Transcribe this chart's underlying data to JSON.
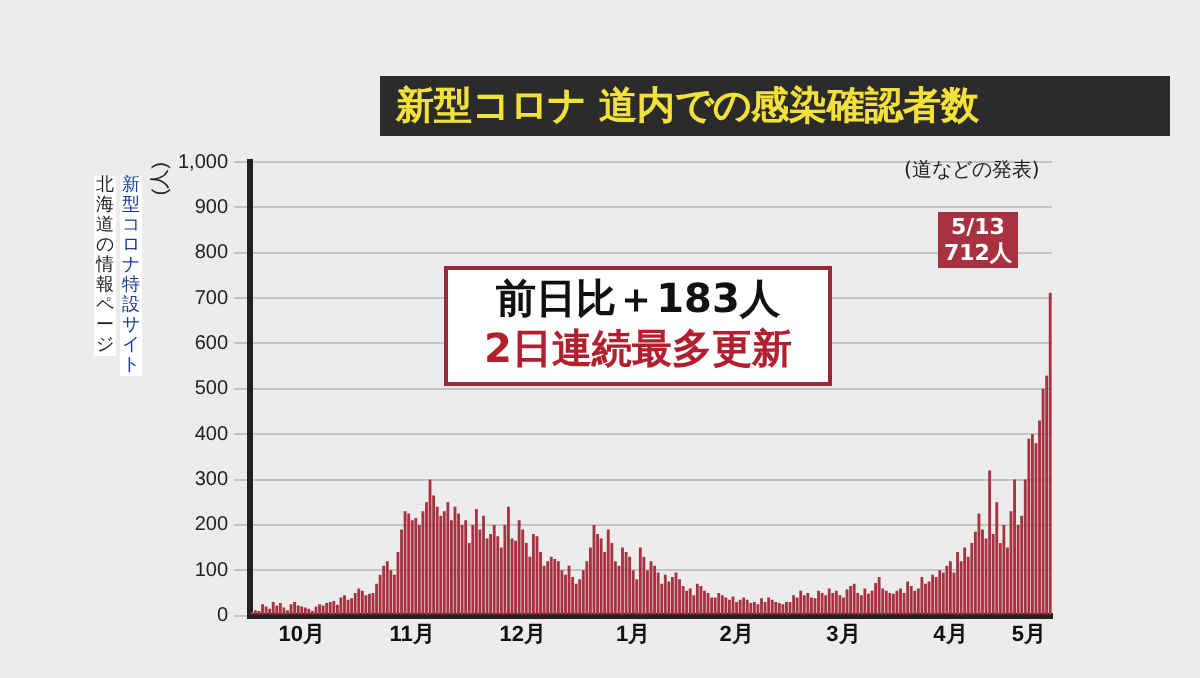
{
  "chart_data": {
    "type": "bar",
    "title": "新型コロナ 道内での感染確認者数",
    "ylabel": "(人)",
    "annotations": [
      "(道などの発表)",
      "前日比＋183人",
      "2日連続最多更新",
      "5/13\n712人",
      "新型コロナ特設サイト",
      "北海道の情報ページ"
    ],
    "categories": [
      null,
      null,
      null,
      null,
      null,
      null,
      null,
      null,
      null,
      null,
      null,
      null,
      null,
      null,
      "10月",
      null,
      null,
      null,
      null,
      null,
      null,
      null,
      null,
      null,
      null,
      null,
      null,
      null,
      null,
      null,
      null,
      null,
      null,
      null,
      null,
      null,
      null,
      null,
      null,
      null,
      null,
      null,
      null,
      null,
      null,
      "11月",
      null,
      null,
      null,
      null,
      null,
      null,
      null,
      null,
      null,
      null,
      null,
      null,
      null,
      null,
      null,
      null,
      null,
      null,
      null,
      null,
      null,
      null,
      null,
      null,
      null,
      null,
      null,
      null,
      null,
      null,
      "12月",
      null,
      null,
      null,
      null,
      null,
      null,
      null,
      null,
      null,
      null,
      null,
      null,
      null,
      null,
      null,
      null,
      null,
      null,
      null,
      null,
      null,
      null,
      null,
      null,
      null,
      null,
      null,
      null,
      null,
      null,
      "1月",
      null,
      null,
      null,
      null,
      null,
      null,
      null,
      null,
      null,
      null,
      null,
      null,
      null,
      null,
      null,
      null,
      null,
      null,
      null,
      null,
      null,
      null,
      null,
      null,
      null,
      null,
      null,
      null,
      "2月",
      null,
      null,
      null,
      null,
      null,
      null,
      null,
      null,
      null,
      null,
      null,
      null,
      null,
      null,
      null,
      null,
      null,
      null,
      null,
      null,
      null,
      null,
      null,
      null,
      null,
      null,
      null,
      null,
      null,
      "3月",
      null,
      null,
      null,
      null,
      null,
      null,
      null,
      null,
      null,
      null,
      null,
      null,
      null,
      null,
      null,
      null,
      null,
      null,
      null,
      null,
      null,
      null,
      null,
      null,
      null,
      null,
      null,
      null,
      null,
      "4月",
      null,
      null,
      null,
      null,
      null,
      null,
      null,
      null,
      null,
      null,
      null,
      null,
      null,
      null,
      null,
      null,
      null,
      null,
      null,
      null,
      null,
      "5月",
      null,
      null,
      null,
      null,
      null,
      null
    ],
    "values": [
      8,
      12,
      10,
      25,
      20,
      15,
      30,
      22,
      28,
      18,
      12,
      25,
      30,
      22,
      20,
      18,
      15,
      10,
      20,
      25,
      22,
      28,
      30,
      32,
      24,
      40,
      45,
      35,
      38,
      50,
      60,
      55,
      45,
      48,
      50,
      70,
      90,
      110,
      120,
      100,
      90,
      140,
      190,
      230,
      225,
      210,
      215,
      200,
      230,
      250,
      300,
      265,
      240,
      220,
      230,
      250,
      210,
      240,
      225,
      200,
      210,
      160,
      200,
      235,
      190,
      220,
      170,
      180,
      200,
      175,
      150,
      200,
      240,
      170,
      165,
      210,
      190,
      160,
      130,
      180,
      175,
      140,
      110,
      120,
      130,
      125,
      120,
      100,
      90,
      110,
      85,
      70,
      80,
      100,
      120,
      150,
      200,
      180,
      170,
      140,
      190,
      160,
      120,
      110,
      150,
      140,
      130,
      100,
      80,
      150,
      130,
      100,
      120,
      110,
      95,
      70,
      90,
      75,
      85,
      95,
      80,
      65,
      55,
      60,
      45,
      70,
      65,
      55,
      50,
      40,
      40,
      50,
      45,
      40,
      35,
      42,
      30,
      35,
      40,
      35,
      28,
      30,
      25,
      38,
      30,
      40,
      35,
      30,
      28,
      25,
      30,
      30,
      45,
      40,
      55,
      45,
      50,
      40,
      38,
      55,
      50,
      45,
      60,
      50,
      55,
      45,
      40,
      58,
      65,
      70,
      50,
      45,
      60,
      48,
      55,
      72,
      85,
      60,
      55,
      50,
      48,
      55,
      60,
      50,
      75,
      65,
      55,
      60,
      85,
      70,
      75,
      90,
      85,
      100,
      95,
      110,
      120,
      95,
      140,
      120,
      150,
      130,
      160,
      185,
      225,
      190,
      170,
      320,
      180,
      250,
      160,
      200,
      150,
      230,
      300,
      200,
      220,
      300,
      390,
      400,
      380,
      430,
      500,
      529,
      712
    ],
    "color": "#a8323f",
    "ylim": [
      0,
      1000
    ],
    "yticks": [
      0,
      100,
      200,
      300,
      400,
      500,
      600,
      700,
      800,
      900,
      {
        "value": 1000,
        "label": "1,000"
      }
    ],
    "grid": "y"
  }
}
